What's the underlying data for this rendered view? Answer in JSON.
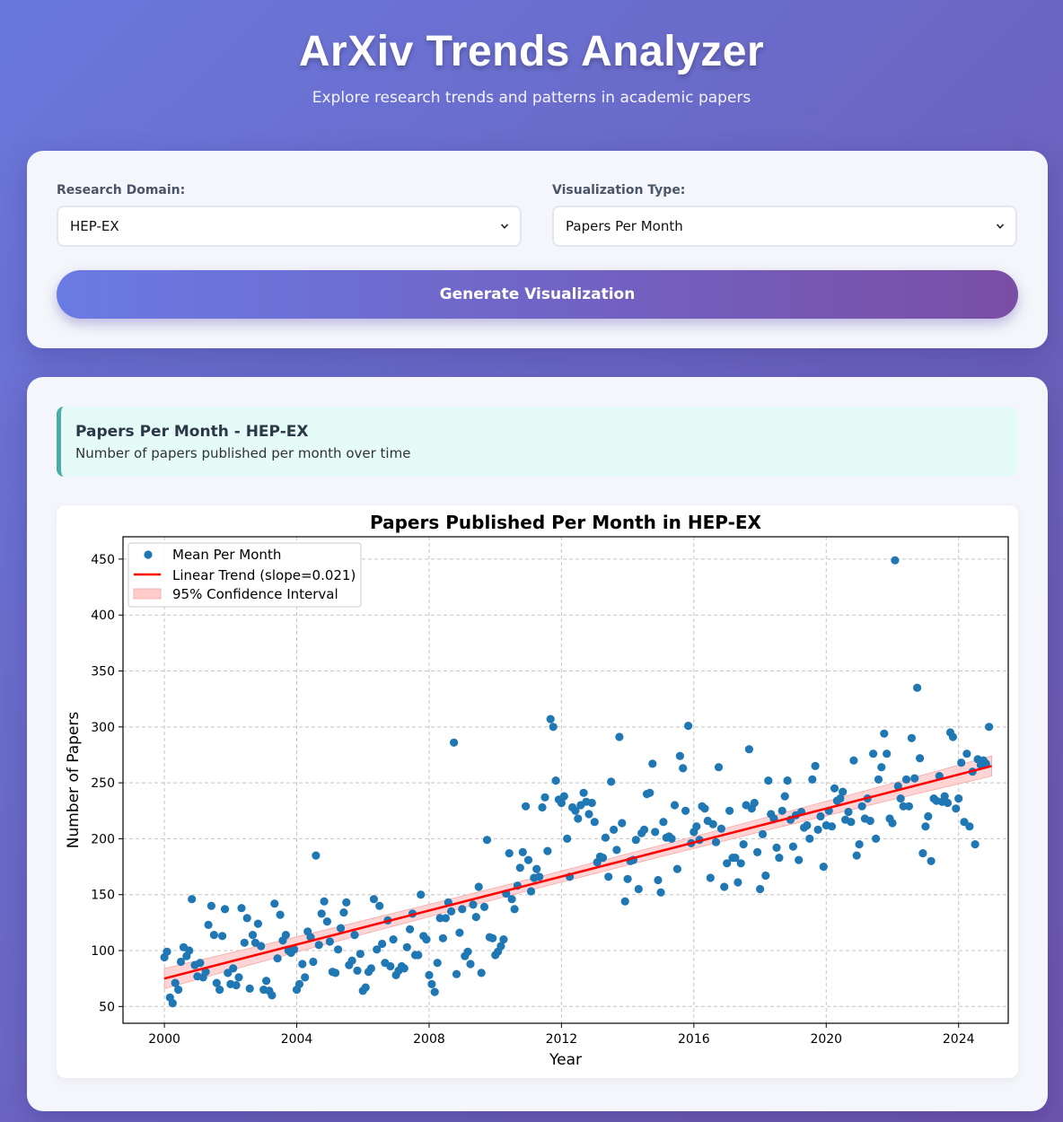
{
  "header": {
    "title": "ArXiv Trends Analyzer",
    "subtitle": "Explore research trends and patterns in academic papers"
  },
  "controls": {
    "domain_label": "Research Domain:",
    "domain_value": "HEP-EX",
    "viz_label": "Visualization Type:",
    "viz_value": "Papers Per Month",
    "generate_label": "Generate Visualization"
  },
  "result_info": {
    "title": "Papers Per Month - HEP-EX",
    "description": "Number of papers published per month over time"
  },
  "colors": {
    "points": "#1f77b4",
    "trend": "#ff0000",
    "ci_fill": "#ffcccc",
    "info_accent": "#4aaea7"
  },
  "chart_data": {
    "type": "scatter",
    "title": "Papers Published Per Month in HEP-EX",
    "xlabel": "Year",
    "ylabel": "Number of Papers",
    "xlim": [
      1998.75,
      2025.5
    ],
    "ylim": [
      35,
      470
    ],
    "xticks": [
      2000,
      2004,
      2008,
      2012,
      2016,
      2020,
      2024
    ],
    "yticks": [
      50,
      100,
      150,
      200,
      250,
      300,
      350,
      400,
      450
    ],
    "grid": true,
    "legend_position": "top-left",
    "legend": [
      "Mean Per Month",
      "Linear Trend (slope=0.021)",
      "95% Confidence Interval"
    ],
    "trend": {
      "x": [
        2000,
        2025
      ],
      "y": [
        75,
        265
      ],
      "ci_halfwidth_ends": 9,
      "ci_halfwidth_mid": 5
    },
    "points": [
      [
        2000.0,
        94
      ],
      [
        2000.08,
        99
      ],
      [
        2000.17,
        58
      ],
      [
        2000.25,
        53
      ],
      [
        2000.33,
        71
      ],
      [
        2000.42,
        65
      ],
      [
        2000.5,
        90
      ],
      [
        2000.58,
        103
      ],
      [
        2000.67,
        95
      ],
      [
        2000.75,
        100
      ],
      [
        2000.83,
        146
      ],
      [
        2000.92,
        87
      ],
      [
        2001.0,
        77
      ],
      [
        2001.08,
        89
      ],
      [
        2001.17,
        76
      ],
      [
        2001.25,
        81
      ],
      [
        2001.33,
        123
      ],
      [
        2001.42,
        140
      ],
      [
        2001.5,
        114
      ],
      [
        2001.58,
        71
      ],
      [
        2001.67,
        65
      ],
      [
        2001.75,
        113
      ],
      [
        2001.83,
        137
      ],
      [
        2001.92,
        80
      ],
      [
        2002.0,
        70
      ],
      [
        2002.08,
        84
      ],
      [
        2002.17,
        69
      ],
      [
        2002.25,
        76
      ],
      [
        2002.33,
        138
      ],
      [
        2002.42,
        107
      ],
      [
        2002.5,
        129
      ],
      [
        2002.58,
        66
      ],
      [
        2002.67,
        114
      ],
      [
        2002.75,
        107
      ],
      [
        2002.83,
        124
      ],
      [
        2002.92,
        104
      ],
      [
        2003.0,
        65
      ],
      [
        2003.08,
        73
      ],
      [
        2003.17,
        64
      ],
      [
        2003.25,
        60
      ],
      [
        2003.33,
        142
      ],
      [
        2003.42,
        93
      ],
      [
        2003.5,
        132
      ],
      [
        2003.58,
        109
      ],
      [
        2003.67,
        114
      ],
      [
        2003.75,
        100
      ],
      [
        2003.83,
        98
      ],
      [
        2003.92,
        101
      ],
      [
        2004.0,
        65
      ],
      [
        2004.08,
        70
      ],
      [
        2004.17,
        88
      ],
      [
        2004.25,
        76
      ],
      [
        2004.33,
        117
      ],
      [
        2004.42,
        112
      ],
      [
        2004.5,
        90
      ],
      [
        2004.58,
        185
      ],
      [
        2004.67,
        105
      ],
      [
        2004.75,
        133
      ],
      [
        2004.83,
        144
      ],
      [
        2004.92,
        126
      ],
      [
        2005.0,
        108
      ],
      [
        2005.08,
        81
      ],
      [
        2005.17,
        80
      ],
      [
        2005.25,
        101
      ],
      [
        2005.33,
        120
      ],
      [
        2005.42,
        134
      ],
      [
        2005.5,
        143
      ],
      [
        2005.58,
        87
      ],
      [
        2005.67,
        91
      ],
      [
        2005.75,
        114
      ],
      [
        2005.83,
        82
      ],
      [
        2005.92,
        97
      ],
      [
        2006.0,
        64
      ],
      [
        2006.08,
        67
      ],
      [
        2006.17,
        81
      ],
      [
        2006.25,
        84
      ],
      [
        2006.33,
        146
      ],
      [
        2006.42,
        101
      ],
      [
        2006.5,
        140
      ],
      [
        2006.58,
        106
      ],
      [
        2006.67,
        89
      ],
      [
        2006.75,
        127
      ],
      [
        2006.83,
        86
      ],
      [
        2006.92,
        110
      ],
      [
        2007.0,
        78
      ],
      [
        2007.08,
        82
      ],
      [
        2007.17,
        86
      ],
      [
        2007.25,
        84
      ],
      [
        2007.33,
        103
      ],
      [
        2007.42,
        119
      ],
      [
        2007.5,
        133
      ],
      [
        2007.58,
        96
      ],
      [
        2007.67,
        96
      ],
      [
        2007.75,
        150
      ],
      [
        2007.83,
        113
      ],
      [
        2007.92,
        110
      ],
      [
        2008.0,
        78
      ],
      [
        2008.08,
        70
      ],
      [
        2008.17,
        63
      ],
      [
        2008.25,
        89
      ],
      [
        2008.33,
        129
      ],
      [
        2008.42,
        111
      ],
      [
        2008.5,
        129
      ],
      [
        2008.58,
        143
      ],
      [
        2008.67,
        135
      ],
      [
        2008.75,
        286
      ],
      [
        2008.83,
        79
      ],
      [
        2008.92,
        116
      ],
      [
        2009.0,
        137
      ],
      [
        2009.08,
        95
      ],
      [
        2009.17,
        99
      ],
      [
        2009.25,
        88
      ],
      [
        2009.33,
        141
      ],
      [
        2009.42,
        130
      ],
      [
        2009.5,
        157
      ],
      [
        2009.58,
        80
      ],
      [
        2009.67,
        139
      ],
      [
        2009.75,
        199
      ],
      [
        2009.83,
        112
      ],
      [
        2009.92,
        111
      ],
      [
        2010.0,
        96
      ],
      [
        2010.08,
        99
      ],
      [
        2010.17,
        104
      ],
      [
        2010.25,
        110
      ],
      [
        2010.33,
        151
      ],
      [
        2010.42,
        187
      ],
      [
        2010.5,
        146
      ],
      [
        2010.58,
        137
      ],
      [
        2010.67,
        158
      ],
      [
        2010.75,
        174
      ],
      [
        2010.83,
        188
      ],
      [
        2010.92,
        229
      ],
      [
        2011.0,
        181
      ],
      [
        2011.08,
        153
      ],
      [
        2011.17,
        165
      ],
      [
        2011.25,
        173
      ],
      [
        2011.33,
        166
      ],
      [
        2011.42,
        228
      ],
      [
        2011.5,
        237
      ],
      [
        2011.58,
        189
      ],
      [
        2011.67,
        307
      ],
      [
        2011.75,
        300
      ],
      [
        2011.83,
        252
      ],
      [
        2011.92,
        235
      ],
      [
        2012.0,
        232
      ],
      [
        2012.08,
        238
      ],
      [
        2012.17,
        200
      ],
      [
        2012.25,
        166
      ],
      [
        2012.33,
        228
      ],
      [
        2012.42,
        225
      ],
      [
        2012.5,
        218
      ],
      [
        2012.58,
        230
      ],
      [
        2012.67,
        241
      ],
      [
        2012.75,
        233
      ],
      [
        2012.83,
        222
      ],
      [
        2012.92,
        232
      ],
      [
        2013.0,
        215
      ],
      [
        2013.08,
        179
      ],
      [
        2013.17,
        184
      ],
      [
        2013.25,
        183
      ],
      [
        2013.33,
        201
      ],
      [
        2013.42,
        166
      ],
      [
        2013.5,
        251
      ],
      [
        2013.58,
        208
      ],
      [
        2013.67,
        190
      ],
      [
        2013.75,
        291
      ],
      [
        2013.83,
        214
      ],
      [
        2013.92,
        144
      ],
      [
        2014.0,
        164
      ],
      [
        2014.08,
        180
      ],
      [
        2014.17,
        181
      ],
      [
        2014.25,
        199
      ],
      [
        2014.33,
        155
      ],
      [
        2014.42,
        205
      ],
      [
        2014.5,
        208
      ],
      [
        2014.58,
        240
      ],
      [
        2014.67,
        241
      ],
      [
        2014.75,
        267
      ],
      [
        2014.83,
        206
      ],
      [
        2014.92,
        163
      ],
      [
        2015.0,
        152
      ],
      [
        2015.08,
        215
      ],
      [
        2015.17,
        201
      ],
      [
        2015.25,
        202
      ],
      [
        2015.33,
        200
      ],
      [
        2015.42,
        230
      ],
      [
        2015.5,
        173
      ],
      [
        2015.58,
        274
      ],
      [
        2015.67,
        263
      ],
      [
        2015.75,
        225
      ],
      [
        2015.83,
        301
      ],
      [
        2015.92,
        196
      ],
      [
        2016.0,
        206
      ],
      [
        2016.08,
        211
      ],
      [
        2016.17,
        199
      ],
      [
        2016.25,
        229
      ],
      [
        2016.33,
        227
      ],
      [
        2016.42,
        216
      ],
      [
        2016.5,
        165
      ],
      [
        2016.58,
        213
      ],
      [
        2016.67,
        197
      ],
      [
        2016.75,
        264
      ],
      [
        2016.83,
        209
      ],
      [
        2016.92,
        157
      ],
      [
        2017.0,
        178
      ],
      [
        2017.08,
        225
      ],
      [
        2017.17,
        183
      ],
      [
        2017.25,
        183
      ],
      [
        2017.33,
        161
      ],
      [
        2017.42,
        178
      ],
      [
        2017.5,
        195
      ],
      [
        2017.58,
        230
      ],
      [
        2017.67,
        280
      ],
      [
        2017.75,
        227
      ],
      [
        2017.83,
        232
      ],
      [
        2017.92,
        188
      ],
      [
        2018.0,
        155
      ],
      [
        2018.08,
        204
      ],
      [
        2018.17,
        167
      ],
      [
        2018.25,
        252
      ],
      [
        2018.33,
        222
      ],
      [
        2018.42,
        218
      ],
      [
        2018.5,
        192
      ],
      [
        2018.58,
        183
      ],
      [
        2018.67,
        225
      ],
      [
        2018.75,
        238
      ],
      [
        2018.83,
        252
      ],
      [
        2018.92,
        217
      ],
      [
        2019.0,
        193
      ],
      [
        2019.08,
        221
      ],
      [
        2019.17,
        181
      ],
      [
        2019.25,
        224
      ],
      [
        2019.33,
        210
      ],
      [
        2019.42,
        212
      ],
      [
        2019.5,
        200
      ],
      [
        2019.58,
        253
      ],
      [
        2019.67,
        265
      ],
      [
        2019.75,
        208
      ],
      [
        2019.83,
        220
      ],
      [
        2019.92,
        175
      ],
      [
        2020.0,
        212
      ],
      [
        2020.08,
        225
      ],
      [
        2020.17,
        211
      ],
      [
        2020.25,
        245
      ],
      [
        2020.33,
        234
      ],
      [
        2020.42,
        236
      ],
      [
        2020.5,
        242
      ],
      [
        2020.58,
        217
      ],
      [
        2020.67,
        224
      ],
      [
        2020.75,
        215
      ],
      [
        2020.83,
        270
      ],
      [
        2020.92,
        185
      ],
      [
        2021.0,
        195
      ],
      [
        2021.08,
        229
      ],
      [
        2021.17,
        218
      ],
      [
        2021.25,
        236
      ],
      [
        2021.33,
        216
      ],
      [
        2021.42,
        276
      ],
      [
        2021.5,
        200
      ],
      [
        2021.58,
        253
      ],
      [
        2021.67,
        264
      ],
      [
        2021.75,
        294
      ],
      [
        2021.83,
        276
      ],
      [
        2021.92,
        218
      ],
      [
        2022.0,
        214
      ],
      [
        2022.08,
        449
      ],
      [
        2022.17,
        247
      ],
      [
        2022.25,
        236
      ],
      [
        2022.33,
        229
      ],
      [
        2022.42,
        253
      ],
      [
        2022.5,
        229
      ],
      [
        2022.58,
        290
      ],
      [
        2022.67,
        254
      ],
      [
        2022.75,
        335
      ],
      [
        2022.83,
        272
      ],
      [
        2022.92,
        187
      ],
      [
        2023.0,
        211
      ],
      [
        2023.08,
        220
      ],
      [
        2023.17,
        180
      ],
      [
        2023.25,
        236
      ],
      [
        2023.33,
        234
      ],
      [
        2023.42,
        256
      ],
      [
        2023.5,
        233
      ],
      [
        2023.58,
        238
      ],
      [
        2023.67,
        232
      ],
      [
        2023.75,
        295
      ],
      [
        2023.83,
        291
      ],
      [
        2023.92,
        227
      ],
      [
        2024.0,
        236
      ],
      [
        2024.08,
        268
      ],
      [
        2024.17,
        215
      ],
      [
        2024.25,
        276
      ],
      [
        2024.33,
        211
      ],
      [
        2024.42,
        260
      ],
      [
        2024.5,
        195
      ],
      [
        2024.58,
        271
      ],
      [
        2024.67,
        266
      ],
      [
        2024.75,
        270
      ],
      [
        2024.83,
        267
      ],
      [
        2024.92,
        300
      ]
    ]
  }
}
